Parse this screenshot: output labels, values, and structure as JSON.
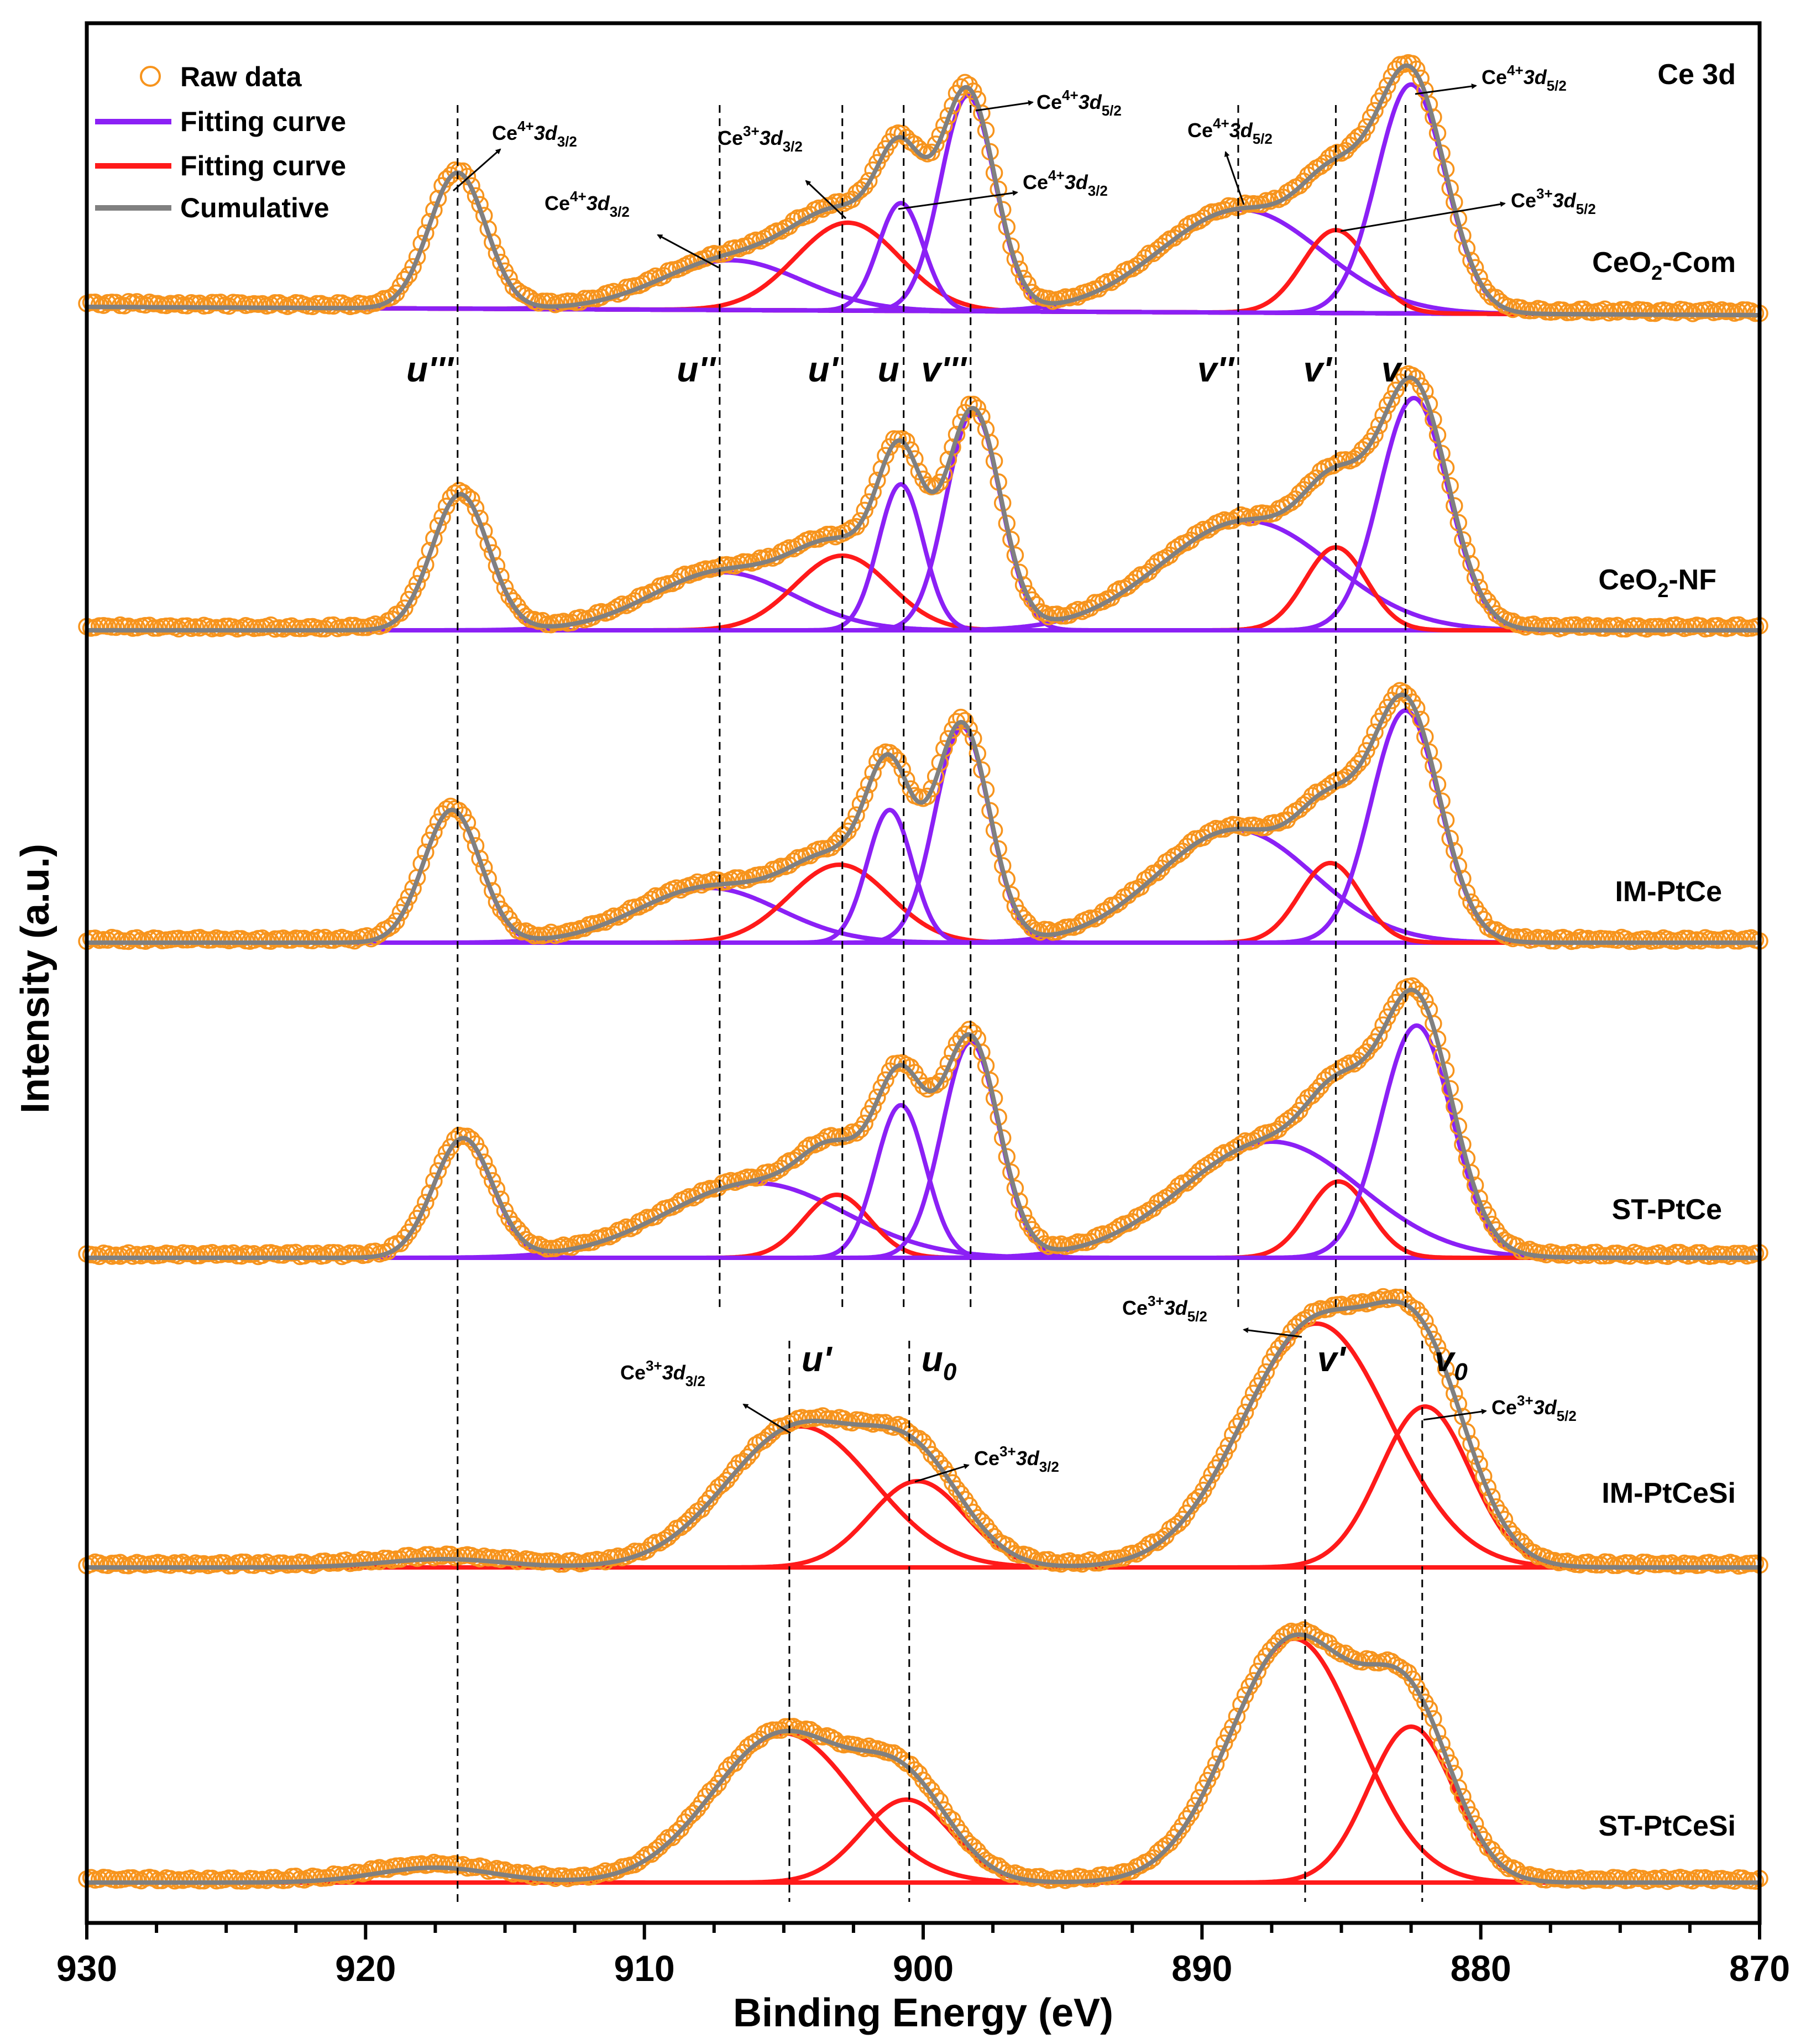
{
  "chart_data": {
    "type": "line",
    "title": "Ce 3d",
    "xlabel": "Binding Energy (eV)",
    "ylabel": "Intensity (a.u.)",
    "xlim": [
      930,
      870
    ],
    "x_reversed": true,
    "x_ticks": [
      930,
      920,
      910,
      900,
      890,
      880,
      870
    ],
    "legend": [
      {
        "label": "Raw data",
        "kind": "marker",
        "color": "#f7941d"
      },
      {
        "label": "Fitting curve",
        "kind": "line",
        "color": "#8b20f5"
      },
      {
        "label": "Fitting curve",
        "kind": "line",
        "color": "#ff1a1a"
      },
      {
        "label": "Cumulative",
        "kind": "line",
        "color": "#808080"
      }
    ],
    "legend_position": "top-left",
    "colors": {
      "raw": "#f7941d",
      "ce4": "#8b20f5",
      "ce3": "#ff1a1a",
      "cumulative": "#808080"
    },
    "series": [
      {
        "name": "CeO2-Com",
        "label": "CeO",
        "label_sub": "2",
        "label_rest": "-Com",
        "background": 0.05,
        "peaks": [
          {
            "type": "ce4",
            "center": 916.7,
            "height": 0.82,
            "fwhm": 2.4
          },
          {
            "type": "ce4",
            "center": 906.9,
            "height": 0.3,
            "fwhm": 6.0
          },
          {
            "type": "ce3",
            "center": 902.7,
            "height": 0.53,
            "fwhm": 4.4
          },
          {
            "type": "ce4",
            "center": 900.8,
            "height": 0.65,
            "fwhm": 1.9
          },
          {
            "type": "ce4",
            "center": 898.4,
            "height": 1.3,
            "fwhm": 2.3
          },
          {
            "type": "ce4",
            "center": 888.6,
            "height": 0.62,
            "fwhm": 6.8
          },
          {
            "type": "ce3",
            "center": 885.2,
            "height": 0.5,
            "fwhm": 2.8
          },
          {
            "type": "ce4",
            "center": 882.5,
            "height": 1.38,
            "fwhm": 2.9
          }
        ]
      },
      {
        "name": "CeO2-NF",
        "label": "CeO",
        "label_sub": "2",
        "label_rest": "-NF",
        "background": 0.0,
        "peaks": [
          {
            "type": "ce4",
            "center": 916.6,
            "height": 0.82,
            "fwhm": 2.4
          },
          {
            "type": "ce4",
            "center": 907.2,
            "height": 0.35,
            "fwhm": 6.0
          },
          {
            "type": "ce3",
            "center": 902.9,
            "height": 0.45,
            "fwhm": 4.0
          },
          {
            "type": "ce4",
            "center": 900.8,
            "height": 0.88,
            "fwhm": 1.9
          },
          {
            "type": "ce4",
            "center": 898.2,
            "height": 1.32,
            "fwhm": 2.3
          },
          {
            "type": "ce4",
            "center": 888.4,
            "height": 0.66,
            "fwhm": 7.2
          },
          {
            "type": "ce3",
            "center": 885.2,
            "height": 0.5,
            "fwhm": 2.6
          },
          {
            "type": "ce4",
            "center": 882.4,
            "height": 1.4,
            "fwhm": 2.9
          }
        ]
      },
      {
        "name": "IM-PtCe",
        "label": "IM-PtCe",
        "label_sub": "",
        "label_rest": "",
        "background": 0.0,
        "peaks": [
          {
            "type": "ce4",
            "center": 916.9,
            "height": 0.8,
            "fwhm": 2.4
          },
          {
            "type": "ce4",
            "center": 907.7,
            "height": 0.33,
            "fwhm": 6.0
          },
          {
            "type": "ce3",
            "center": 903.0,
            "height": 0.47,
            "fwhm": 4.2
          },
          {
            "type": "ce4",
            "center": 901.2,
            "height": 0.8,
            "fwhm": 1.9
          },
          {
            "type": "ce4",
            "center": 898.6,
            "height": 1.3,
            "fwhm": 2.3
          },
          {
            "type": "ce4",
            "center": 888.8,
            "height": 0.68,
            "fwhm": 6.6
          },
          {
            "type": "ce3",
            "center": 885.4,
            "height": 0.48,
            "fwhm": 2.6
          },
          {
            "type": "ce4",
            "center": 882.7,
            "height": 1.4,
            "fwhm": 2.9
          }
        ]
      },
      {
        "name": "ST-PtCe",
        "label": "ST-PtCe",
        "label_sub": "",
        "label_rest": "",
        "background": 0.0,
        "peaks": [
          {
            "type": "ce4",
            "center": 916.5,
            "height": 0.72,
            "fwhm": 2.5
          },
          {
            "type": "ce4",
            "center": 906.0,
            "height": 0.45,
            "fwhm": 7.5
          },
          {
            "type": "ce3",
            "center": 903.1,
            "height": 0.38,
            "fwhm": 2.8
          },
          {
            "type": "ce4",
            "center": 900.8,
            "height": 0.92,
            "fwhm": 2.1
          },
          {
            "type": "ce4",
            "center": 898.3,
            "height": 1.3,
            "fwhm": 2.4
          },
          {
            "type": "ce4",
            "center": 887.5,
            "height": 0.7,
            "fwhm": 7.5
          },
          {
            "type": "ce3",
            "center": 885.1,
            "height": 0.46,
            "fwhm": 2.6
          },
          {
            "type": "ce4",
            "center": 882.3,
            "height": 1.4,
            "fwhm": 3.0
          }
        ]
      },
      {
        "name": "IM-PtCeSi",
        "label": "IM-PtCeSi",
        "label_sub": "",
        "label_rest": "",
        "background": 0.0,
        "peaks": [
          {
            "type": "ce3",
            "center": 917.2,
            "height": 0.05,
            "fwhm": 5.0
          },
          {
            "type": "ce3",
            "center": 904.4,
            "height": 0.85,
            "fwhm": 6.2
          },
          {
            "type": "ce3",
            "center": 900.2,
            "height": 0.52,
            "fwhm": 4.0
          },
          {
            "type": "ce3",
            "center": 885.9,
            "height": 1.47,
            "fwhm": 6.2
          },
          {
            "type": "ce3",
            "center": 882.0,
            "height": 0.97,
            "fwhm": 3.8
          }
        ]
      },
      {
        "name": "ST-PtCeSi",
        "label": "ST-PtCeSi",
        "label_sub": "",
        "label_rest": "",
        "background": 0.0,
        "peaks": [
          {
            "type": "ce3",
            "center": 917.5,
            "height": 0.09,
            "fwhm": 5.0
          },
          {
            "type": "ce3",
            "center": 905.0,
            "height": 0.9,
            "fwhm": 6.0
          },
          {
            "type": "ce3",
            "center": 900.6,
            "height": 0.5,
            "fwhm": 3.8
          },
          {
            "type": "ce3",
            "center": 886.7,
            "height": 1.47,
            "fwhm": 5.4
          },
          {
            "type": "ce3",
            "center": 882.5,
            "height": 0.94,
            "fwhm": 3.6
          }
        ]
      }
    ],
    "reference_lines_upper": [
      {
        "x": 916.7,
        "label": "u'''"
      },
      {
        "x": 907.3,
        "label": "u''"
      },
      {
        "x": 902.9,
        "label": "u'"
      },
      {
        "x": 900.7,
        "label": "u"
      },
      {
        "x": 898.3,
        "label": "v'''"
      },
      {
        "x": 888.7,
        "label": "v''"
      },
      {
        "x": 885.2,
        "label": "v'"
      },
      {
        "x": 882.7,
        "label": "v"
      }
    ],
    "reference_lines_lower": [
      {
        "x": 904.8,
        "label": "u'",
        "sub": ""
      },
      {
        "x": 900.5,
        "label": "u",
        "sub": "0"
      },
      {
        "x": 886.3,
        "label": "v'",
        "sub": ""
      },
      {
        "x": 882.1,
        "label": "v",
        "sub": "0"
      }
    ],
    "annotations": [
      {
        "ion": "Ce",
        "charge": "4+",
        "orbital": "3d",
        "level": "3/2"
      },
      {
        "ion": "Ce",
        "charge": "4+",
        "orbital": "3d",
        "level": "3/2"
      },
      {
        "ion": "Ce",
        "charge": "3+",
        "orbital": "3d",
        "level": "3/2"
      },
      {
        "ion": "Ce",
        "charge": "4+",
        "orbital": "3d",
        "level": "3/2"
      },
      {
        "ion": "Ce",
        "charge": "4+",
        "orbital": "3d",
        "level": "5/2"
      },
      {
        "ion": "Ce",
        "charge": "4+",
        "orbital": "3d",
        "level": "5/2"
      },
      {
        "ion": "Ce",
        "charge": "3+",
        "orbital": "3d",
        "level": "5/2"
      },
      {
        "ion": "Ce",
        "charge": "4+",
        "orbital": "3d",
        "level": "5/2"
      },
      {
        "ion": "Ce",
        "charge": "3+",
        "orbital": "3d",
        "level": "3/2"
      },
      {
        "ion": "Ce",
        "charge": "3+",
        "orbital": "3d",
        "level": "3/2"
      },
      {
        "ion": "Ce",
        "charge": "3+",
        "orbital": "3d",
        "level": "5/2"
      },
      {
        "ion": "Ce",
        "charge": "3+",
        "orbital": "3d",
        "level": "5/2"
      }
    ]
  }
}
